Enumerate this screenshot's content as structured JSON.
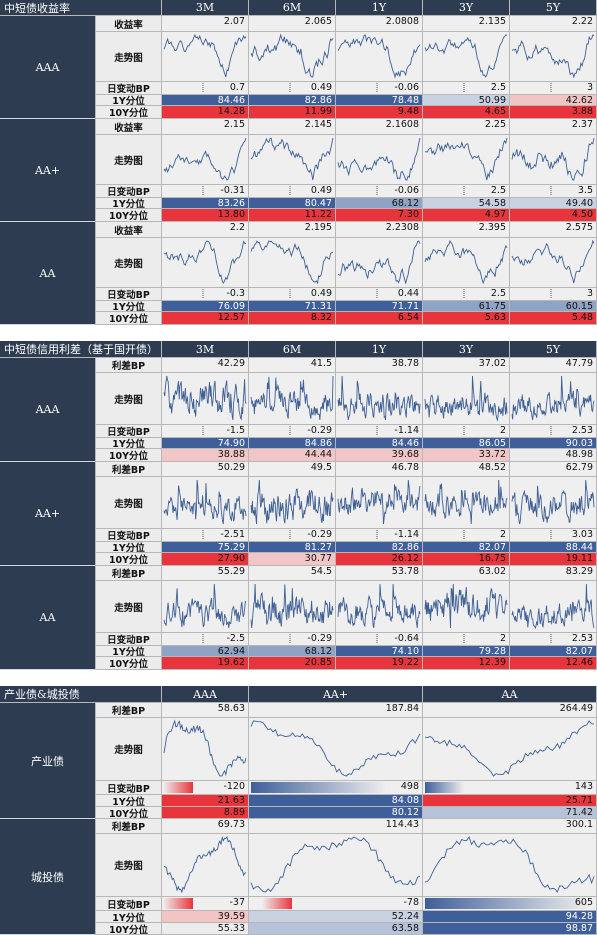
{
  "colors": {
    "header_bg": "#2e3c52",
    "line": "#3e5f94",
    "blue": "#3f5f9a",
    "red": "#e8353b"
  },
  "row_labels": {
    "yield": "收益率",
    "spread": "利差BP",
    "trend": "走势图",
    "change": "日变动BP",
    "pct1y": "1Y分位",
    "pct10y": "10Y分位"
  },
  "blocks": [
    {
      "header": {
        "title": "中短债收益率",
        "columns": [
          "3M",
          "6M",
          "1Y",
          "3Y",
          "5Y"
        ]
      },
      "groups": [
        {
          "name": "AAA",
          "value_label": "收益率",
          "values": [
            "2.07",
            "2.065",
            "2.0808",
            "2.135",
            "2.22"
          ],
          "changes": [
            "0.7",
            "0.49",
            "-0.06",
            "2.5",
            "3"
          ],
          "pct1y": [
            "84.46",
            "82.86",
            "78.48",
            "50.99",
            "42.62"
          ],
          "pct10y": [
            "14.28",
            "11.99",
            "9.48",
            "4.65",
            "3.88"
          ]
        },
        {
          "name": "AA+",
          "value_label": "收益率",
          "values": [
            "2.15",
            "2.145",
            "2.1608",
            "2.25",
            "2.37"
          ],
          "changes": [
            "-0.31",
            "0.49",
            "-0.06",
            "2.5",
            "3.5"
          ],
          "pct1y": [
            "83.26",
            "80.47",
            "68.12",
            "54.58",
            "49.40"
          ],
          "pct10y": [
            "13.80",
            "11.22",
            "7.30",
            "4.97",
            "4.50"
          ]
        },
        {
          "name": "AA",
          "value_label": "收益率",
          "values": [
            "2.2",
            "2.195",
            "2.2308",
            "2.395",
            "2.575"
          ],
          "changes": [
            "-0.3",
            "0.49",
            "0.44",
            "2.5",
            "3"
          ],
          "pct1y": [
            "76.09",
            "71.31",
            "71.71",
            "61.75",
            "60.15"
          ],
          "pct10y": [
            "12.57",
            "8.32",
            "6.54",
            "5.63",
            "5.48"
          ]
        }
      ]
    },
    {
      "header": {
        "title": "中短债信用利差（基于国开债）",
        "columns": [
          "3M",
          "6M",
          "1Y",
          "3Y",
          "5Y"
        ]
      },
      "groups": [
        {
          "name": "AAA",
          "value_label": "利差BP",
          "values": [
            "42.29",
            "41.5",
            "38.78",
            "37.02",
            "47.79"
          ],
          "changes": [
            "-1.5",
            "-0.29",
            "-1.14",
            "2",
            "2.53"
          ],
          "pct1y": [
            "74.90",
            "84.86",
            "84.46",
            "86.05",
            "90.03"
          ],
          "pct10y": [
            "38.88",
            "44.44",
            "39.68",
            "33.72",
            "48.98"
          ]
        },
        {
          "name": "AA+",
          "value_label": "利差BP",
          "values": [
            "50.29",
            "49.5",
            "46.78",
            "48.52",
            "62.79"
          ],
          "changes": [
            "-2.51",
            "-0.29",
            "-1.14",
            "2",
            "3.03"
          ],
          "pct1y": [
            "75.29",
            "81.27",
            "82.86",
            "82.07",
            "88.44"
          ],
          "pct10y": [
            "27.90",
            "30.77",
            "26.12",
            "16.75",
            "19.11"
          ]
        },
        {
          "name": "AA",
          "value_label": "利差BP",
          "values": [
            "55.29",
            "54.5",
            "53.78",
            "63.02",
            "83.29"
          ],
          "changes": [
            "-2.5",
            "-0.29",
            "-0.64",
            "2",
            "2.53"
          ],
          "pct1y": [
            "62.94",
            "68.12",
            "74.10",
            "79.28",
            "82.07"
          ],
          "pct10y": [
            "19.62",
            "20.85",
            "19.22",
            "12.39",
            "12.46"
          ]
        }
      ]
    },
    {
      "header": {
        "title": "产业债&城投债",
        "columns": [
          "AAA",
          "AA+",
          "AA"
        ]
      },
      "groups": [
        {
          "name": "产业债",
          "value_label": "利差BP",
          "values": [
            "58.63",
            "187.84",
            "264.49"
          ],
          "changes": [
            "-120",
            "498",
            "143"
          ],
          "pct1y": [
            "21.63",
            "84.08",
            "25.71"
          ],
          "pct10y": [
            "8.89",
            "80.12",
            "71.42"
          ]
        },
        {
          "name": "城投债",
          "value_label": "利差BP",
          "values": [
            "69.73",
            "114.43",
            "300.1"
          ],
          "changes": [
            "-37",
            "-78",
            "605"
          ],
          "pct1y": [
            "39.59",
            "52.24",
            "94.28"
          ],
          "pct10y": [
            "55.33",
            "63.58",
            "98.87"
          ]
        }
      ]
    }
  ]
}
